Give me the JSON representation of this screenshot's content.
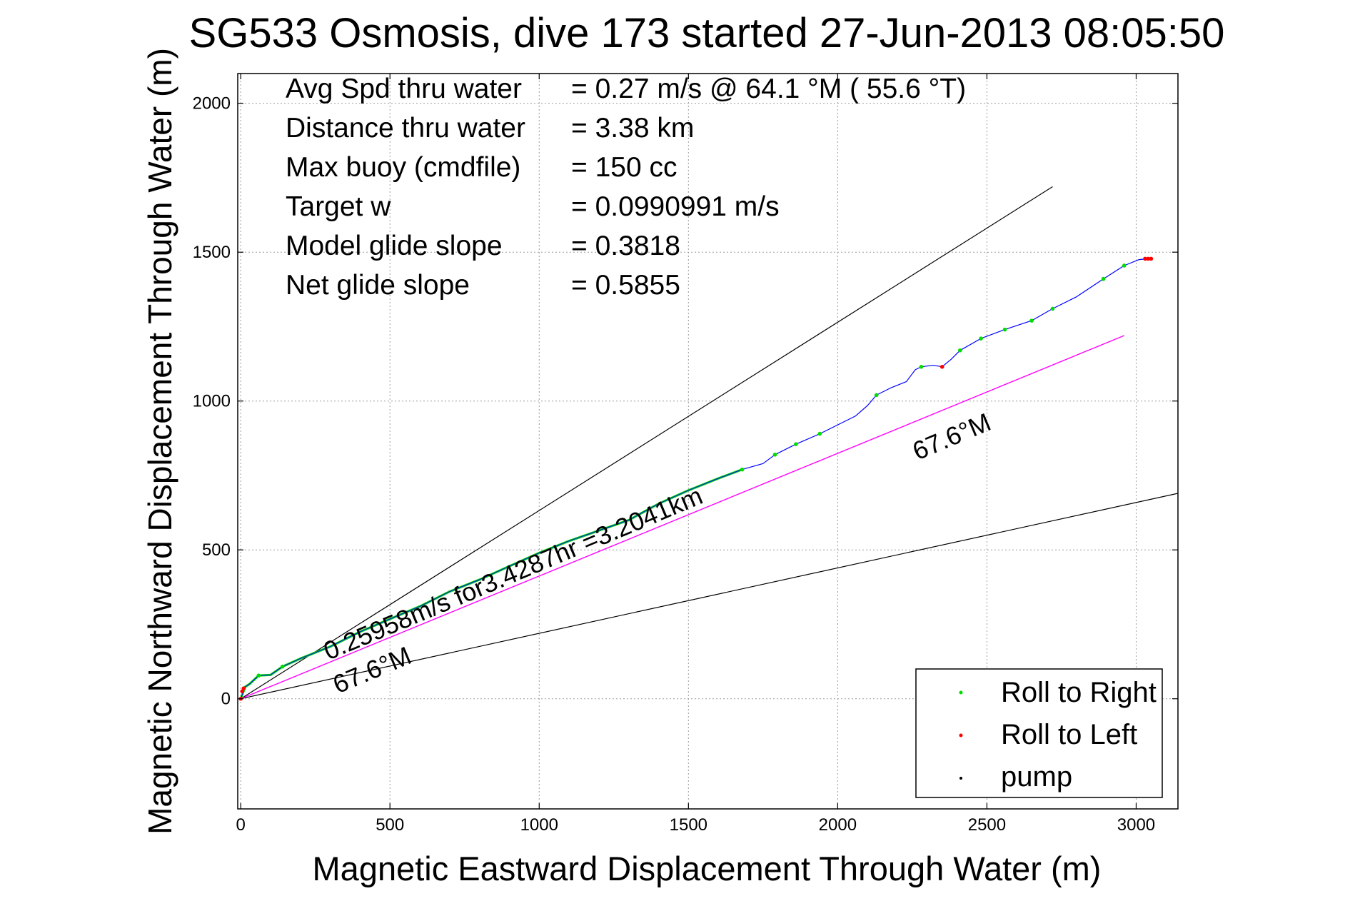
{
  "chart_data": {
    "type": "line",
    "title": "SG533 Osmosis, dive 173 started 27-Jun-2013 08:05:50",
    "xlabel": "Magnetic Eastward Displacement Through Water (m)",
    "ylabel": "Magnetic Northward Displacement Through Water (m)",
    "xlim": [
      -10,
      3140
    ],
    "ylim": [
      -370,
      2100
    ],
    "xticks": [
      0,
      500,
      1000,
      1500,
      2000,
      2500,
      3000
    ],
    "yticks": [
      0,
      500,
      1000,
      1500,
      2000
    ],
    "grid": true,
    "info_lines": [
      {
        "label": "Avg Spd thru water",
        "value": "=  0.27 m/s @  64.1 °M ( 55.6 °T)"
      },
      {
        "label": "Distance thru water",
        "value": "=  3.38 km"
      },
      {
        "label": "Max buoy (cmdfile)",
        "value": "= 150 cc"
      },
      {
        "label": "Target w",
        "value": "= 0.0990991 m/s"
      },
      {
        "label": "Model glide slope",
        "value": "= 0.3818"
      },
      {
        "label": "Net glide slope",
        "value": "= 0.5855"
      }
    ],
    "annotations": {
      "track_summary": "0.25958m/s for3.4287hr =3.2041km",
      "heading_upper": "67.6°M",
      "heading_lower": "67.6°M"
    },
    "legend": {
      "placement": "bottom-right",
      "entries": [
        {
          "name": "Roll to Right",
          "color": "#00dd00"
        },
        {
          "name": "Roll to Left",
          "color": "#ff0000"
        },
        {
          "name": "pump",
          "color": "#000000"
        }
      ]
    },
    "colors": {
      "track": "#0000ff",
      "roll_right": "#00dd00",
      "roll_left": "#ff0000",
      "pump": "#000000",
      "bearing_line": "#ff00ff",
      "envelope": "#000000"
    },
    "series": [
      {
        "role": "track",
        "x": [
          0,
          15,
          30,
          60,
          100,
          140,
          200,
          300,
          400,
          500,
          600,
          700,
          800,
          900,
          1000,
          1100,
          1200,
          1300,
          1400,
          1500,
          1600,
          1680,
          1750,
          1790,
          1860,
          1940,
          2000,
          2060,
          2100,
          2130,
          2180,
          2230,
          2260,
          2280,
          2320,
          2350,
          2380,
          2410,
          2480,
          2560,
          2650,
          2720,
          2800,
          2890,
          2960,
          3010,
          3040
        ],
        "y": [
          0,
          40,
          50,
          78,
          80,
          108,
          135,
          175,
          225,
          268,
          310,
          360,
          400,
          445,
          490,
          530,
          565,
          600,
          655,
          700,
          740,
          770,
          790,
          820,
          855,
          890,
          920,
          950,
          985,
          1020,
          1045,
          1065,
          1105,
          1115,
          1120,
          1115,
          1140,
          1170,
          1210,
          1240,
          1270,
          1310,
          1350,
          1410,
          1455,
          1475,
          1478
        ]
      },
      {
        "role": "roll_right",
        "x": [
          60,
          140,
          1680,
          1790,
          1860,
          1940,
          2130,
          2280,
          2410,
          2480,
          2560,
          2650,
          2720,
          2890,
          2960
        ],
        "y": [
          78,
          108,
          770,
          820,
          855,
          890,
          1020,
          1115,
          1170,
          1210,
          1240,
          1270,
          1310,
          1410,
          1455
        ]
      },
      {
        "role": "roll_left",
        "x": [
          0,
          5,
          10,
          2350,
          3030,
          3040,
          3050
        ],
        "y": [
          0,
          25,
          35,
          1115,
          1478,
          1478,
          1478
        ]
      },
      {
        "role": "bearing_line",
        "x": [
          0,
          2960
        ],
        "y": [
          0,
          1220
        ]
      },
      {
        "role": "envelope_upper",
        "x": [
          0,
          2720
        ],
        "y": [
          0,
          1720
        ]
      },
      {
        "role": "envelope_lower",
        "x": [
          0,
          3140
        ],
        "y": [
          0,
          690
        ]
      }
    ]
  }
}
